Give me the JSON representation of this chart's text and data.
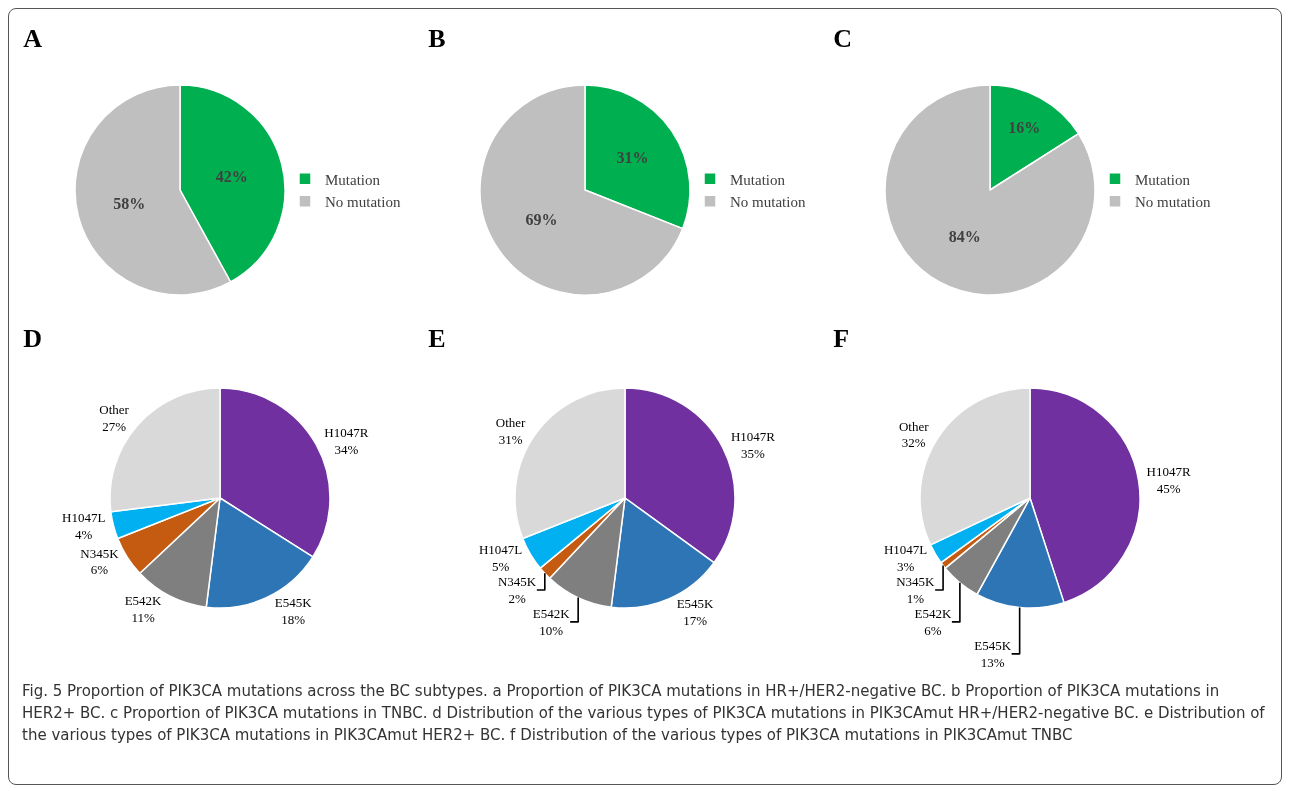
{
  "chart_data": [
    {
      "type": "pie",
      "title": "A",
      "categories": [
        "Mutation",
        "No mutation"
      ],
      "values": [
        42,
        58
      ],
      "colors": [
        "#00b050",
        "#bfbfbf"
      ],
      "value_labels": [
        "42%",
        "58%"
      ],
      "legend": "right"
    },
    {
      "type": "pie",
      "title": "B",
      "categories": [
        "Mutation",
        "No mutation"
      ],
      "values": [
        31,
        69
      ],
      "colors": [
        "#00b050",
        "#bfbfbf"
      ],
      "value_labels": [
        "31%",
        "69%"
      ],
      "legend": "right"
    },
    {
      "type": "pie",
      "title": "C",
      "categories": [
        "Mutation",
        "No mutation"
      ],
      "values": [
        16,
        84
      ],
      "colors": [
        "#00b050",
        "#bfbfbf"
      ],
      "value_labels": [
        "16%",
        "84%"
      ],
      "legend": "right"
    },
    {
      "type": "pie",
      "title": "D",
      "categories": [
        "H1047R",
        "E545K",
        "E542K",
        "N345K",
        "H1047L",
        "Other"
      ],
      "values": [
        34,
        18,
        11,
        6,
        4,
        27
      ],
      "colors": [
        "#7030a0",
        "#2e75b6",
        "#7f7f7f",
        "#c55a11",
        "#00b0f0",
        "#d9d9d9"
      ],
      "value_labels": [
        "34%",
        "18%",
        "11%",
        "6%",
        "4%",
        "27%"
      ]
    },
    {
      "type": "pie",
      "title": "E",
      "categories": [
        "H1047R",
        "E545K",
        "E542K",
        "N345K",
        "H1047L",
        "Other"
      ],
      "values": [
        35,
        17,
        10,
        2,
        5,
        31
      ],
      "colors": [
        "#7030a0",
        "#2e75b6",
        "#7f7f7f",
        "#c55a11",
        "#00b0f0",
        "#d9d9d9"
      ],
      "value_labels": [
        "35%",
        "17%",
        "10%",
        "2%",
        "5%",
        "31%"
      ]
    },
    {
      "type": "pie",
      "title": "F",
      "categories": [
        "H1047R",
        "E545K",
        "E542K",
        "N345K",
        "H1047L",
        "Other"
      ],
      "values": [
        45,
        13,
        6,
        1,
        3,
        32
      ],
      "colors": [
        "#7030a0",
        "#2e75b6",
        "#7f7f7f",
        "#c55a11",
        "#00b0f0",
        "#d9d9d9"
      ],
      "value_labels": [
        "45%",
        "13%",
        "6%",
        "1%",
        "3%",
        "32%"
      ],
      "annotations": [
        "Fig. 5 Proportion of PIK3CA mutations across the BC subtypes. a Proportion of PIK3CA mutations in HR+/HER2-negative BC. b Proportion of PIK3CA mutations in HER2+ BC. c Proportion of PIK3CA mutations in TNBC. d Distribution of the various types of PIK3CA mutations in PIK3CAmut HR+/HER2-negative BC. e Distribution of the various types of PIK3CA mutations in PIK3CAmut HER2+ BC. f Distribution of the various types of PIK3CA mutations in PIK3CAmut TNBC"
      ]
    }
  ]
}
